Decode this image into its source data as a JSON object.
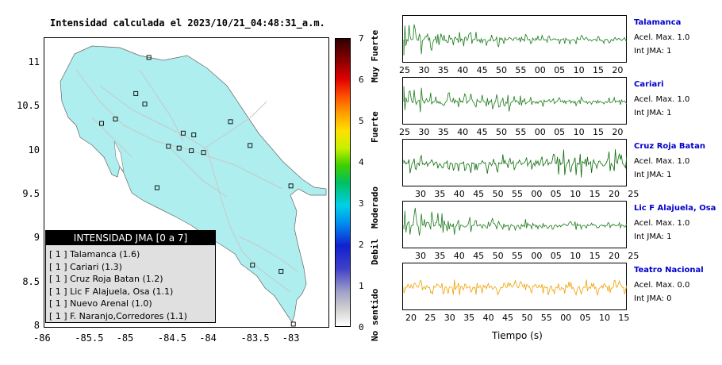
{
  "map": {
    "title": "Intensidad calculada el 2023/10/21_04:48:31_a.m.",
    "x_ticks": [
      "-86",
      "-85.5",
      "-85",
      "-84.5",
      "-84",
      "-83.5",
      "-83"
    ],
    "y_ticks": [
      "11",
      "10.5",
      "10",
      "9.5",
      "9",
      "8.5",
      "8"
    ],
    "land_color": "#aeeeee",
    "road_color": "#c8c8c8"
  },
  "legend": {
    "title": "INTENSIDAD JMA [0 a 7]",
    "items": [
      "[ 1 ]  Talamanca (1.6)",
      "[ 1 ]  Cariari (1.3)",
      "[ 1 ]  Cruz Roja Batan (1.2)",
      "[ 1 ]  Lic F Alajuela, Osa (1.1)",
      "[ 1 ]  Nuevo Arenal (1.0)",
      "[ 1 ]  F. Naranjo,Corredores (1.1)"
    ]
  },
  "colorbar": {
    "ticks": [
      "7",
      "6",
      "5",
      "4",
      "3",
      "2",
      "1",
      "0"
    ],
    "names": [
      "Muy Fuerte",
      "Fuerte",
      "Moderado",
      "Debil",
      "No sentido"
    ]
  },
  "traces": {
    "x_title": "Tiempo (s)",
    "stations": [
      {
        "name": "Talamanca",
        "acel": "Acel. Max. 1.0",
        "int": "Int JMA: 1",
        "color": "#1a7a1a",
        "ticks": [
          "25",
          "30",
          "35",
          "40",
          "45",
          "50",
          "55",
          "00",
          "05",
          "10",
          "15",
          "20"
        ]
      },
      {
        "name": "Cariari",
        "acel": "Acel. Max. 1.0",
        "int": "Int JMA: 1",
        "color": "#1a7a1a",
        "ticks": [
          "25",
          "30",
          "35",
          "40",
          "45",
          "50",
          "55",
          "00",
          "05",
          "10",
          "15",
          "20"
        ]
      },
      {
        "name": "Cruz Roja Batan",
        "acel": "Acel. Max. 1.0",
        "int": "Int JMA: 1",
        "color": "#0a6a0a",
        "ticks": [
          "30",
          "35",
          "40",
          "45",
          "50",
          "55",
          "00",
          "05",
          "10",
          "15",
          "20",
          "25"
        ]
      },
      {
        "name": "Lic F Alajuela, Osa",
        "acel": "Acel. Max. 1.0",
        "int": "Int JMA: 1",
        "color": "#1a7a1a",
        "ticks": [
          "30",
          "35",
          "40",
          "45",
          "50",
          "55",
          "00",
          "05",
          "10",
          "15",
          "20",
          "25"
        ]
      },
      {
        "name": "Teatro Nacional",
        "acel": "Acel. Max. 0.0",
        "int": "Int JMA: 0",
        "color": "#f0a000",
        "ticks": [
          "20",
          "25",
          "30",
          "35",
          "40",
          "45",
          "50",
          "55",
          "00",
          "05",
          "10",
          "15"
        ]
      }
    ]
  },
  "chart_data": {
    "type": "scatter",
    "title": "Intensidad calculada el 2023/10/21_04:48:31_a.m.",
    "xlim": [
      -86,
      -82.5
    ],
    "ylim": [
      8,
      11.3
    ],
    "points": [
      {
        "lon": -84.72,
        "lat": 11.08
      },
      {
        "lon": -84.88,
        "lat": 10.67
      },
      {
        "lon": -84.77,
        "lat": 10.55
      },
      {
        "lon": -85.13,
        "lat": 10.38
      },
      {
        "lon": -85.3,
        "lat": 10.33
      },
      {
        "lon": -84.3,
        "lat": 10.22
      },
      {
        "lon": -84.17,
        "lat": 10.2
      },
      {
        "lon": -83.72,
        "lat": 10.35
      },
      {
        "lon": -83.48,
        "lat": 10.08
      },
      {
        "lon": -84.48,
        "lat": 10.07
      },
      {
        "lon": -84.35,
        "lat": 10.05
      },
      {
        "lon": -84.2,
        "lat": 10.02
      },
      {
        "lon": -84.05,
        "lat": 10.0
      },
      {
        "lon": -84.62,
        "lat": 9.6
      },
      {
        "lon": -82.98,
        "lat": 9.62
      },
      {
        "lon": -83.1,
        "lat": 8.65
      },
      {
        "lon": -83.45,
        "lat": 8.72
      },
      {
        "lon": -82.95,
        "lat": 8.05
      }
    ]
  }
}
